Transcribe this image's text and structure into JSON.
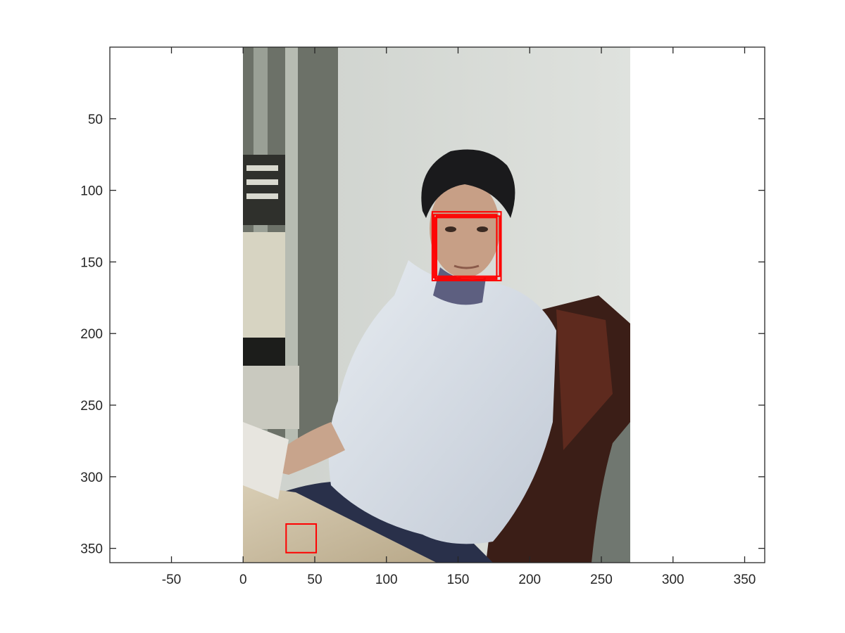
{
  "figure": {
    "image_description_kind": "photo of a man seated in a white ribbed sweater beside a server rack; face-detection boxes overlaid",
    "image_extent": {
      "x": [
        0,
        270
      ],
      "y": [
        0,
        360
      ]
    },
    "axes": {
      "xlim": [
        -93,
        364
      ],
      "ylim": [
        0,
        360
      ],
      "y_direction": "reverse",
      "x_ticks": [
        -50,
        0,
        50,
        100,
        150,
        200,
        250,
        300,
        350
      ],
      "y_ticks": [
        50,
        100,
        150,
        200,
        250,
        300,
        350
      ],
      "x_tick_labels": [
        "-50",
        "0",
        "50",
        "100",
        "150",
        "200",
        "250",
        "300",
        "350"
      ],
      "y_tick_labels": [
        "50",
        "100",
        "150",
        "200",
        "250",
        "300",
        "350"
      ],
      "grid": false,
      "box": true
    },
    "detection_boxes": [
      {
        "x": 132,
        "y": 115,
        "w": 48,
        "h": 48
      },
      {
        "x": 133,
        "y": 117,
        "w": 44,
        "h": 44
      },
      {
        "x": 134,
        "y": 119,
        "w": 43,
        "h": 43
      },
      {
        "x": 135,
        "y": 118,
        "w": 44,
        "h": 42
      },
      {
        "x": 30,
        "y": 333,
        "w": 21,
        "h": 20
      }
    ],
    "box_color": "#ff0000",
    "axis_color": "#262626"
  }
}
